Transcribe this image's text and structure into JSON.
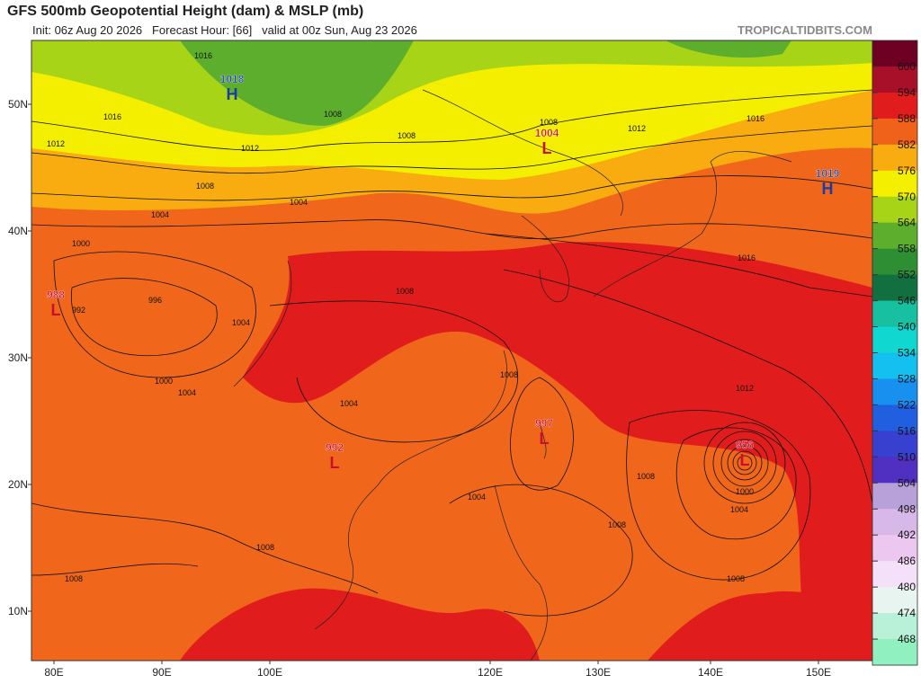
{
  "header": {
    "title": "GFS 500mb Geopotential Height (dam) & MSLP (mb)",
    "subtitle": "Init: 06z Aug 20 2026   Forecast Hour: [66]   valid at 00z Sun, Aug 23 2026",
    "brand": "TROPICALTIDBITS.COM"
  },
  "map": {
    "lat_labels": [
      "50N",
      "40N",
      "30N",
      "20N",
      "10N"
    ],
    "lon_labels": [
      "80E",
      "90E",
      "100E",
      "120E",
      "130E",
      "140E",
      "150E"
    ],
    "pressure_centers": [
      {
        "letter": "H",
        "value": "1018"
      },
      {
        "letter": "L",
        "value": "1004"
      },
      {
        "letter": "H",
        "value": "1019"
      },
      {
        "letter": "L",
        "value": "988"
      },
      {
        "letter": "L",
        "value": "992"
      },
      {
        "letter": "L",
        "value": "997"
      },
      {
        "letter": "L",
        "value": "956"
      }
    ],
    "isobar_labels": [
      "1016",
      "1016",
      "1012",
      "1012",
      "1008",
      "1008",
      "1008",
      "1004",
      "1000",
      "992",
      "996",
      "1004",
      "1000",
      "1004",
      "1008",
      "1004",
      "1004",
      "1008",
      "1008",
      "1004",
      "1000",
      "1012",
      "1016",
      "1016",
      "1008",
      "1012",
      "1008",
      "1008",
      "1008",
      "1008",
      "1004"
    ]
  },
  "colorbar": {
    "labels": [
      "600",
      "594",
      "588",
      "582",
      "576",
      "570",
      "564",
      "558",
      "552",
      "546",
      "540",
      "534",
      "528",
      "522",
      "516",
      "510",
      "504",
      "498",
      "492",
      "486",
      "480",
      "474",
      "468"
    ],
    "colors": [
      "#6e0024",
      "#a8102a",
      "#e01c1c",
      "#f0621a",
      "#f8ac10",
      "#f4ee00",
      "#a8d418",
      "#5cae2c",
      "#2e8e34",
      "#127040",
      "#16c0a0",
      "#10d8d0",
      "#14c0f0",
      "#1890f0",
      "#2060e0",
      "#3840d0",
      "#5030c0",
      "#b8a0d8",
      "#d8b8e8",
      "#ecc8f0",
      "#f4e0f8",
      "#e8f4f0",
      "#b8f0d8",
      "#90f0c0"
    ]
  }
}
